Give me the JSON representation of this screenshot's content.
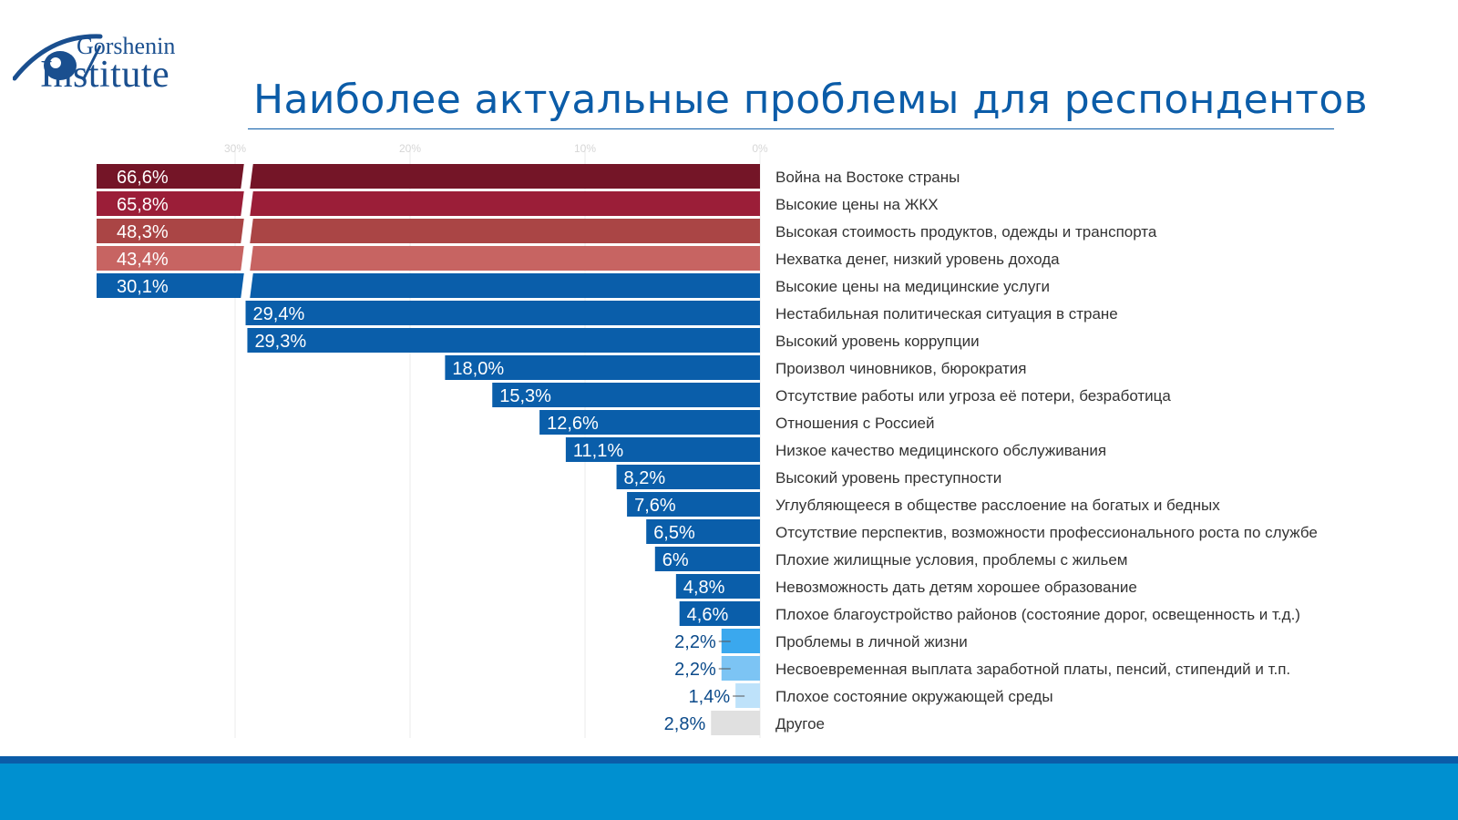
{
  "logo": {
    "line1": "Gorshenin",
    "line2": "Institute",
    "color": "#1a4f8f"
  },
  "title": "Наиболее актуальные проблемы для респондентов",
  "colors": {
    "title": "#0b5ca8",
    "axis_text": "#d6d6d6",
    "gridline": "#ebebeb",
    "footer": "#0090d0",
    "footer_line": "#0b5ca8"
  },
  "chart_data": {
    "type": "bar",
    "orientation": "horizontal",
    "xlim": [
      0,
      30
    ],
    "x_ticks": [
      "30%",
      "20%",
      "10%",
      "0%"
    ],
    "x_tick_values": [
      30,
      20,
      10,
      0
    ],
    "broken_axis": true,
    "grid": true,
    "categories": [
      "Война на Востоке страны",
      "Высокие цены на ЖКХ",
      "Высокая стоимость продуктов, одежды и транспорта",
      "Нехватка денег, низкий уровень дохода",
      "Высокие цены на медицинские услуги",
      "Нестабильная политическая ситуация в стране",
      "Высокий уровень коррупции",
      "Произвол чиновников, бюрократия",
      "Отсутствие работы или угроза её потери, безработица",
      "Отношения с Россией",
      "Низкое качество медицинского обслуживания",
      "Высокий уровень преступности",
      "Углубляющееся в обществе расслоение на богатых и бедных",
      "Отсутствие перспектив, возможности профессионального роста по службе",
      "Плохие жилищные условия, проблемы с жильем",
      "Невозможность дать детям хорошее образование",
      "Плохое благоустройство районов (состояние дорог, освещенность и т.д.)",
      "Проблемы в личной жизни",
      "Несвоевременная выплата заработной платы, пенсий, стипендий и т.п.",
      "Плохое состояние окружающей среды",
      "Другое"
    ],
    "values": [
      66.6,
      65.8,
      48.3,
      43.4,
      30.1,
      29.4,
      29.3,
      18.0,
      15.3,
      12.6,
      11.1,
      8.2,
      7.6,
      6.5,
      6,
      4.8,
      4.6,
      2.2,
      2.2,
      1.4,
      2.8
    ],
    "value_labels": [
      "66,6%",
      "65,8%",
      "48,3%",
      "43,4%",
      "30,1%",
      "29,4%",
      "29,3%",
      "18,0%",
      "15,3%",
      "12,6%",
      "11,1%",
      "8,2%",
      "7,6%",
      "6,5%",
      "6%",
      "4,8%",
      "4,6%",
      "2,2%",
      "2,2%",
      "1,4%",
      "2,8%"
    ],
    "bar_colors": [
      "#741527",
      "#9b1e38",
      "#aa4545",
      "#c76462",
      "#0a5eaa",
      "#0a5eaa",
      "#0a5eaa",
      "#0a5eaa",
      "#0a5eaa",
      "#0a5eaa",
      "#0a5eaa",
      "#0a5eaa",
      "#0a5eaa",
      "#0a5eaa",
      "#0a5eaa",
      "#0a5eaa",
      "#0a5eaa",
      "#3aa8ee",
      "#7cc4f4",
      "#bee2fa",
      "#e0e0e0"
    ]
  }
}
